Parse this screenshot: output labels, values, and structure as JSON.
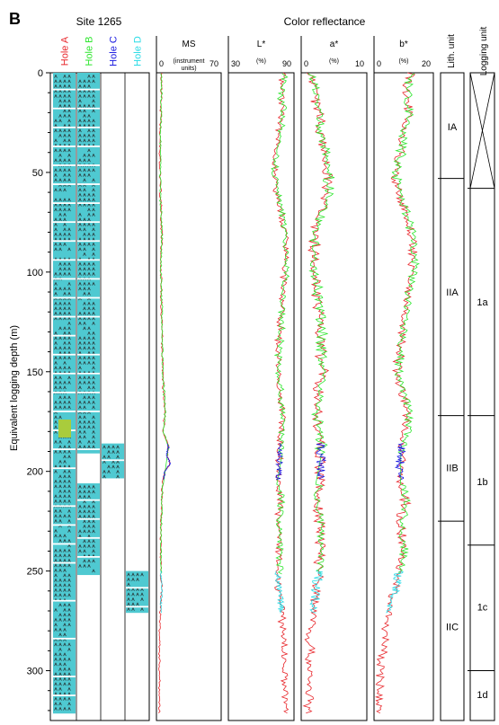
{
  "panel_letter": "B",
  "site_label": "Site 1265",
  "header_color_reflectance": "Color reflectance",
  "y_axis_label": "Equivalent logging depth (m)",
  "colors": {
    "hole_a": "#e8262b",
    "hole_b": "#2ee62e",
    "hole_c": "#1a1ae0",
    "hole_d": "#29dbe6",
    "core": "#4fc9d1",
    "core_highlight": "#a9cc3c"
  },
  "holes": [
    {
      "name": "Hole A",
      "color": "#e8262b"
    },
    {
      "name": "Hole B",
      "color": "#2ee62e"
    },
    {
      "name": "Hole C",
      "color": "#1a1ae0"
    },
    {
      "name": "Hole D",
      "color": "#29dbe6"
    }
  ],
  "chart_data": {
    "type": "line",
    "y_axis": {
      "label": "Equivalent logging depth (m)",
      "range": [
        0,
        325
      ],
      "ticks": [
        0,
        50,
        100,
        150,
        200,
        250,
        300
      ],
      "inverted": true
    },
    "core_recovery": {
      "hole_a": [
        [
          0,
          322
        ]
      ],
      "hole_b": [
        [
          0,
          191
        ],
        [
          206,
          252
        ]
      ],
      "hole_c": [
        [
          186,
          204
        ]
      ],
      "hole_d": [
        [
          250,
          271
        ]
      ]
    },
    "panels": [
      {
        "name": "MS",
        "unit_label": "(instrument\nunits)",
        "range": [
          0,
          70
        ],
        "tick_labels": [
          "0",
          "70"
        ]
      },
      {
        "name": "L*",
        "unit_label": "(%)",
        "range": [
          30,
          90
        ],
        "tick_labels": [
          "30",
          "90"
        ]
      },
      {
        "name": "a*",
        "unit_label": "(%)",
        "range": [
          0,
          10
        ],
        "tick_labels": [
          "0",
          "10"
        ]
      },
      {
        "name": "b*",
        "unit_label": "(%)",
        "range": [
          0,
          20
        ],
        "tick_labels": [
          "0",
          "20"
        ]
      }
    ],
    "lith_units": {
      "title": "Lith. unit",
      "boundaries": [
        0,
        53,
        172,
        225,
        325
      ],
      "labels": [
        {
          "name": "IA",
          "depth": 27
        },
        {
          "name": "IIA",
          "depth": 110
        },
        {
          "name": "IIB",
          "depth": 198
        },
        {
          "name": "IIC",
          "depth": 278
        }
      ]
    },
    "logging_units": {
      "title": "Logging unit",
      "no_data_range": [
        0,
        58
      ],
      "boundaries": [
        58,
        172,
        237,
        300,
        325
      ],
      "labels": [
        {
          "name": "1a",
          "depth": 115
        },
        {
          "name": "1b",
          "depth": 205
        },
        {
          "name": "1c",
          "depth": 268
        },
        {
          "name": "1d",
          "depth": 312
        }
      ]
    },
    "trend_profiles": {
      "MS": [
        [
          0,
          4
        ],
        [
          20,
          3
        ],
        [
          40,
          2
        ],
        [
          60,
          2.5
        ],
        [
          80,
          4
        ],
        [
          100,
          3
        ],
        [
          120,
          4
        ],
        [
          150,
          5
        ],
        [
          170,
          8
        ],
        [
          180,
          6
        ],
        [
          188,
          12
        ],
        [
          192,
          10
        ],
        [
          196,
          14
        ],
        [
          200,
          8
        ],
        [
          206,
          5
        ],
        [
          215,
          4
        ],
        [
          230,
          3
        ],
        [
          250,
          3
        ],
        [
          260,
          4
        ],
        [
          268,
          3
        ],
        [
          275,
          2
        ],
        [
          290,
          1.5
        ],
        [
          310,
          1.5
        ]
      ],
      "L*": [
        [
          0,
          84
        ],
        [
          10,
          80
        ],
        [
          20,
          82
        ],
        [
          30,
          79
        ],
        [
          40,
          76
        ],
        [
          50,
          74
        ],
        [
          60,
          76
        ],
        [
          70,
          80
        ],
        [
          80,
          84
        ],
        [
          95,
          85
        ],
        [
          110,
          83
        ],
        [
          125,
          80
        ],
        [
          140,
          78
        ],
        [
          150,
          77
        ],
        [
          160,
          79
        ],
        [
          172,
          82
        ],
        [
          185,
          80
        ],
        [
          195,
          79
        ],
        [
          205,
          78
        ],
        [
          215,
          80
        ],
        [
          225,
          78
        ],
        [
          240,
          79
        ],
        [
          255,
          77
        ],
        [
          265,
          80
        ],
        [
          275,
          82
        ],
        [
          285,
          84
        ],
        [
          300,
          84
        ],
        [
          315,
          85
        ]
      ],
      "a*": [
        [
          0,
          1.5
        ],
        [
          10,
          2.2
        ],
        [
          20,
          2.5
        ],
        [
          30,
          2.8
        ],
        [
          40,
          3.5
        ],
        [
          50,
          4.2
        ],
        [
          60,
          4.0
        ],
        [
          70,
          3.0
        ],
        [
          80,
          2.0
        ],
        [
          95,
          1.8
        ],
        [
          110,
          2.3
        ],
        [
          125,
          2.8
        ],
        [
          140,
          3.0
        ],
        [
          150,
          3.2
        ],
        [
          160,
          2.6
        ],
        [
          172,
          2.2
        ],
        [
          185,
          2.8
        ],
        [
          195,
          3.0
        ],
        [
          205,
          2.6
        ],
        [
          215,
          2.2
        ],
        [
          225,
          2.7
        ],
        [
          240,
          3.0
        ],
        [
          255,
          2.4
        ],
        [
          265,
          2.0
        ],
        [
          275,
          1.8
        ],
        [
          285,
          1.0
        ],
        [
          300,
          1.2
        ],
        [
          315,
          1.0
        ]
      ],
      "b*": [
        [
          0,
          13
        ],
        [
          10,
          11
        ],
        [
          20,
          12
        ],
        [
          30,
          10
        ],
        [
          40,
          9
        ],
        [
          50,
          7
        ],
        [
          60,
          8
        ],
        [
          70,
          11
        ],
        [
          80,
          13
        ],
        [
          95,
          14
        ],
        [
          110,
          12
        ],
        [
          125,
          10
        ],
        [
          140,
          9
        ],
        [
          150,
          8
        ],
        [
          160,
          10
        ],
        [
          172,
          12
        ],
        [
          185,
          10
        ],
        [
          195,
          9
        ],
        [
          205,
          9
        ],
        [
          215,
          11
        ],
        [
          225,
          9
        ],
        [
          240,
          10
        ],
        [
          255,
          8
        ],
        [
          265,
          6
        ],
        [
          275,
          4
        ],
        [
          285,
          3
        ],
        [
          300,
          2
        ],
        [
          315,
          1
        ]
      ]
    }
  }
}
